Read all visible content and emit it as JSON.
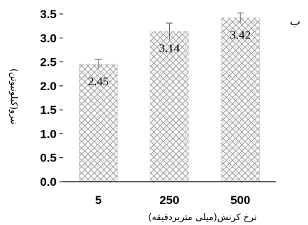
{
  "chart_data": {
    "type": "bar",
    "panel_label": "ب",
    "categories": [
      "5",
      "250",
      "500"
    ],
    "values": [
      2.45,
      3.14,
      3.42
    ],
    "data_labels": [
      "2.45",
      "3.14",
      "3.42"
    ],
    "errors": [
      0.1,
      0.17,
      0.1
    ],
    "xlabel": "نرخ كرنش(ميلی متربردقيقه)",
    "ylabel": "نيرو(كيلونيوتن)",
    "ylim": [
      0,
      3.5
    ],
    "yticks": [
      "0.0",
      "0.5",
      "1.0",
      "1.5",
      "2.0",
      "2.5",
      "3.0",
      "3.5"
    ],
    "bar_pattern": "crosshatch-lattice",
    "bar_color": "#a9a9a9",
    "grid": false,
    "legend": "none"
  }
}
